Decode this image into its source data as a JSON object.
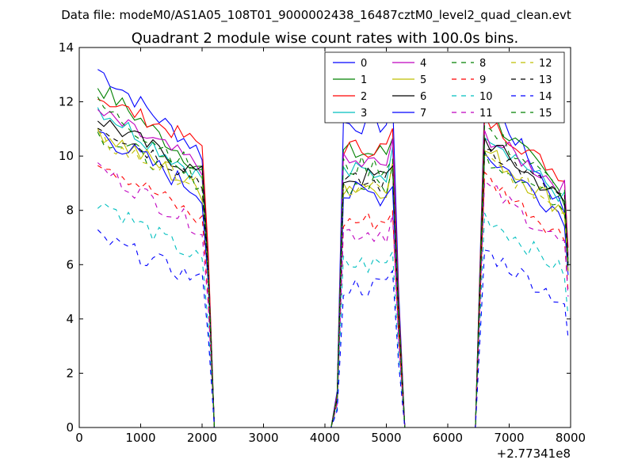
{
  "chart_data": {
    "type": "line",
    "suptitle": "Data file: modeM0/AS1A05_108T01_9000002438_16487cztM0_level2_quad_clean.evt",
    "title": "Quadrant 2 module wise count rates with 100.0s bins.",
    "xlabel": "",
    "ylabel": "",
    "x_offset_label": "+2.77341e8",
    "xlim": [
      0,
      8000
    ],
    "ylim": [
      0,
      14
    ],
    "x_ticks": [
      0,
      1000,
      2000,
      3000,
      4000,
      5000,
      6000,
      7000,
      8000
    ],
    "y_ticks": [
      0,
      2,
      4,
      6,
      8,
      10,
      12,
      14
    ],
    "legend_position": "top-right",
    "segments": [
      {
        "start": 300,
        "n": 18
      },
      {
        "start": 4300,
        "n": 9
      },
      {
        "start": 6600,
        "n": 14
      }
    ],
    "gap_zero_ranges": [
      [
        2200,
        4100
      ],
      [
        5300,
        6450
      ]
    ],
    "series": [
      {
        "name": "0",
        "color": "#0000ff",
        "dash": "solid",
        "levels": [
          13.2,
          11.2,
          10.1,
          8.0
        ],
        "noise": 0.35
      },
      {
        "name": "1",
        "color": "#008000",
        "dash": "solid",
        "levels": [
          12.6,
          10.1,
          9.5,
          8.5
        ],
        "noise": 0.35
      },
      {
        "name": "2",
        "color": "#ff0000",
        "dash": "solid",
        "levels": [
          12.2,
          10.3,
          10.4,
          9.2
        ],
        "noise": 0.3
      },
      {
        "name": "3",
        "color": "#00bfbf",
        "dash": "solid",
        "levels": [
          11.8,
          9.4,
          9.2,
          8.4
        ],
        "noise": 0.35
      },
      {
        "name": "4",
        "color": "#bf00bf",
        "dash": "solid",
        "levels": [
          11.6,
          9.7,
          9.6,
          8.8
        ],
        "noise": 0.35
      },
      {
        "name": "5",
        "color": "#bfbf00",
        "dash": "solid",
        "levels": [
          11.0,
          8.9,
          8.7,
          8.0
        ],
        "noise": 0.4
      },
      {
        "name": "6",
        "color": "#000000",
        "dash": "solid",
        "levels": [
          11.4,
          9.2,
          9.3,
          8.3
        ],
        "noise": 0.35
      },
      {
        "name": "7",
        "color": "#0000ff",
        "dash": "solid",
        "levels": [
          10.9,
          8.6,
          8.6,
          7.8
        ],
        "noise": 0.4
      },
      {
        "name": "8",
        "color": "#008000",
        "dash": "dashed",
        "levels": [
          10.8,
          8.9,
          9.0,
          8.2
        ],
        "noise": 0.35
      },
      {
        "name": "9",
        "color": "#ff0000",
        "dash": "dashed",
        "levels": [
          9.9,
          7.6,
          7.6,
          7.0
        ],
        "noise": 0.35
      },
      {
        "name": "10",
        "color": "#00bfbf",
        "dash": "dashed",
        "levels": [
          8.4,
          6.0,
          6.1,
          5.7
        ],
        "noise": 0.35
      },
      {
        "name": "11",
        "color": "#bf00bf",
        "dash": "dashed",
        "levels": [
          9.6,
          7.2,
          7.3,
          6.7
        ],
        "noise": 0.35
      },
      {
        "name": "12",
        "color": "#bfbf00",
        "dash": "dashed",
        "levels": [
          10.6,
          8.8,
          8.9,
          8.0
        ],
        "noise": 0.35
      },
      {
        "name": "13",
        "color": "#000000",
        "dash": "dashed",
        "levels": [
          11.2,
          9.0,
          9.1,
          8.4
        ],
        "noise": 0.35
      },
      {
        "name": "14",
        "color": "#0000ff",
        "dash": "dashed",
        "levels": [
          7.0,
          5.2,
          5.4,
          4.6
        ],
        "noise": 0.35
      },
      {
        "name": "15",
        "color": "#008000",
        "dash": "dashed",
        "levels": [
          11.9,
          9.6,
          9.4,
          8.6
        ],
        "noise": 0.35
      }
    ]
  }
}
